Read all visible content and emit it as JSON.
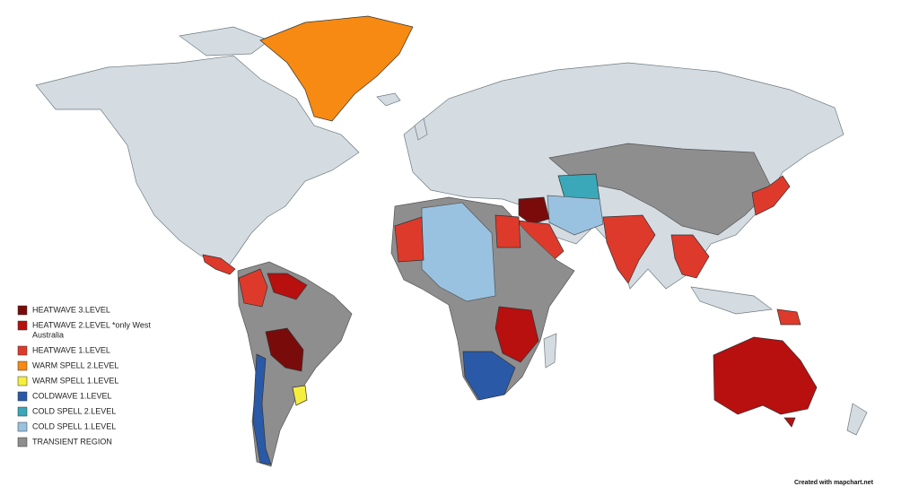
{
  "legend": {
    "items": [
      {
        "label": "HEATWAVE 3.LEVEL",
        "color": "#7a0b0b"
      },
      {
        "label": "HEATWAVE 2.LEVEL *only West",
        "label_line2": "Australia",
        "color": "#b80f0f"
      },
      {
        "label": "HEATWAVE 1.LEVEL",
        "color": "#dd3a2b"
      },
      {
        "label": "WARM SPELL 2.LEVEL",
        "color": "#f68a12"
      },
      {
        "label": "WARM SPELL 1.LEVEL",
        "color": "#f6ee3d"
      },
      {
        "label": "COLDWAVE 1.LEVEL",
        "color": "#2a5aa7"
      },
      {
        "label": "COLD SPELL 2.LEVEL",
        "color": "#3aa8b8"
      },
      {
        "label": "COLD SPELL 1.LEVEL",
        "color": "#99c2e0"
      },
      {
        "label": "TRANSIENT REGION",
        "color": "#8e8e8e"
      }
    ]
  },
  "credit": "Created with mapchart.net"
}
